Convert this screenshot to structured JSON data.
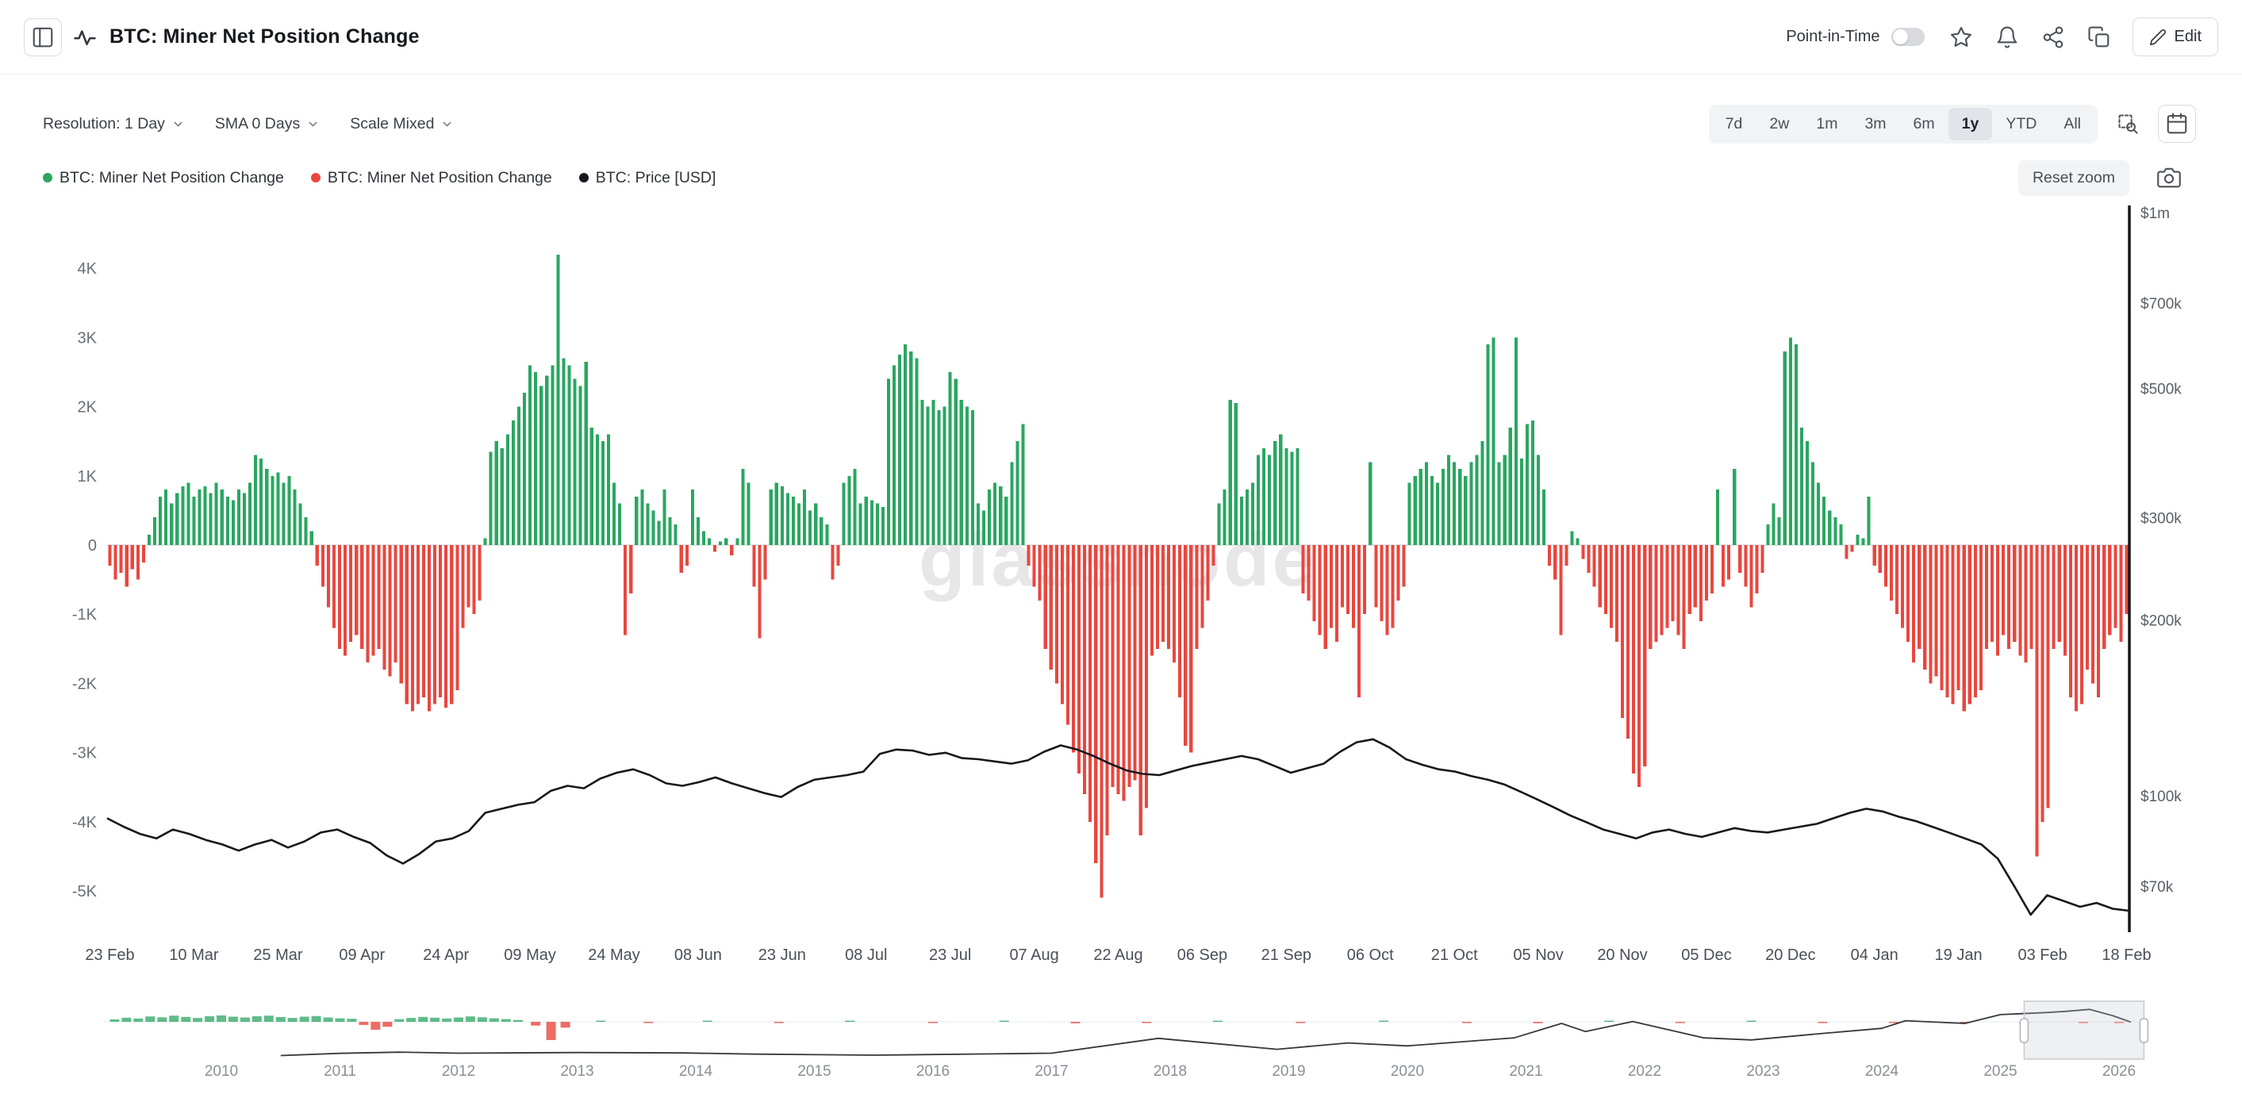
{
  "header": {
    "title": "BTC: Miner Net Position Change",
    "point_in_time_label": "Point-in-Time",
    "edit_label": "Edit"
  },
  "toolbar": {
    "resolution_label": "Resolution: 1 Day",
    "sma_label": "SMA 0 Days",
    "scale_label": "Scale Mixed",
    "ranges": [
      "7d",
      "2w",
      "1m",
      "3m",
      "6m",
      "1y",
      "YTD",
      "All"
    ],
    "active_range": "1y",
    "reset_zoom_label": "Reset zoom"
  },
  "legend": [
    {
      "label": "BTC: Miner Net Position Change",
      "color": "#2aa660"
    },
    {
      "label": "BTC: Miner Net Position Change",
      "color": "#e8473f"
    },
    {
      "label": "BTC: Price [USD]",
      "color": "#15181d"
    }
  ],
  "watermark": "glassnode",
  "chart_data": {
    "type": "bar",
    "title": "BTC: Miner Net Position Change",
    "bar_series_name": "BTC: Miner Net Position Change",
    "price_series_name": "BTC: Price [USD]",
    "ylim": [
      -5600,
      4800
    ],
    "left_axis_ticks": [
      {
        "label": "4K",
        "value": 4000
      },
      {
        "label": "3K",
        "value": 3000
      },
      {
        "label": "2K",
        "value": 2000
      },
      {
        "label": "1K",
        "value": 1000
      },
      {
        "label": "0",
        "value": 0
      },
      {
        "label": "-1K",
        "value": -1000
      },
      {
        "label": "-2K",
        "value": -2000
      },
      {
        "label": "-3K",
        "value": -3000
      },
      {
        "label": "-4K",
        "value": -4000
      },
      {
        "label": "-5K",
        "value": -5000
      }
    ],
    "right_axis_log": true,
    "right_axis_ticks": [
      {
        "label": "$1m",
        "value": 1000000
      },
      {
        "label": "$700k",
        "value": 700000
      },
      {
        "label": "$500k",
        "value": 500000
      },
      {
        "label": "$300k",
        "value": 300000
      },
      {
        "label": "$200k",
        "value": 200000
      },
      {
        "label": "$100k",
        "value": 100000
      },
      {
        "label": "$70k",
        "value": 70000
      }
    ],
    "x_tick_labels": [
      "23 Feb",
      "10 Mar",
      "25 Mar",
      "09 Apr",
      "24 Apr",
      "09 May",
      "24 May",
      "08 Jun",
      "23 Jun",
      "08 Jul",
      "23 Jul",
      "07 Aug",
      "22 Aug",
      "06 Sep",
      "21 Sep",
      "06 Oct",
      "21 Oct",
      "05 Nov",
      "20 Nov",
      "05 Dec",
      "20 Dec",
      "04 Jan",
      "19 Jan",
      "03 Feb",
      "18 Feb"
    ],
    "x_tick_day_offsets": [
      0,
      15,
      30,
      45,
      60,
      75,
      90,
      105,
      120,
      135,
      150,
      165,
      180,
      195,
      210,
      225,
      240,
      255,
      270,
      285,
      300,
      315,
      330,
      345,
      360
    ],
    "colors": {
      "positive": "#2aa660",
      "negative": "#e8473f",
      "price": "#15181d"
    },
    "bar_values": [
      -300,
      -500,
      -400,
      -600,
      -350,
      -500,
      -250,
      150,
      400,
      700,
      800,
      600,
      750,
      850,
      900,
      700,
      800,
      850,
      750,
      900,
      800,
      700,
      650,
      800,
      750,
      900,
      1300,
      1250,
      1100,
      1000,
      1050,
      900,
      1000,
      800,
      600,
      400,
      200,
      -300,
      -600,
      -900,
      -1200,
      -1500,
      -1600,
      -1400,
      -1300,
      -1500,
      -1700,
      -1600,
      -1500,
      -1800,
      -1900,
      -1700,
      -2000,
      -2300,
      -2400,
      -2300,
      -2200,
      -2400,
      -2300,
      -2200,
      -2350,
      -2300,
      -2100,
      -1200,
      -900,
      -1000,
      -800,
      100,
      1350,
      1500,
      1400,
      1600,
      1800,
      2000,
      2200,
      2600,
      2500,
      2300,
      2450,
      2600,
      4200,
      2700,
      2600,
      2400,
      2300,
      2650,
      1700,
      1600,
      1500,
      1600,
      900,
      600,
      -1300,
      -700,
      700,
      800,
      600,
      500,
      350,
      800,
      400,
      300,
      -400,
      -300,
      800,
      400,
      200,
      100,
      -100,
      50,
      100,
      -150,
      100,
      1100,
      900,
      -600,
      -1350,
      -500,
      800,
      900,
      850,
      750,
      700,
      600,
      800,
      500,
      600,
      400,
      300,
      -500,
      -300,
      900,
      1000,
      1100,
      600,
      700,
      650,
      600,
      550,
      2400,
      2600,
      2750,
      2900,
      2800,
      2700,
      2100,
      2000,
      2100,
      1950,
      2000,
      2500,
      2400,
      2100,
      2000,
      1950,
      600,
      500,
      800,
      900,
      850,
      700,
      1200,
      1500,
      1750,
      -300,
      -600,
      -800,
      -1500,
      -1800,
      -2000,
      -2300,
      -2600,
      -3000,
      -3300,
      -3600,
      -4000,
      -4600,
      -5100,
      -4200,
      -3500,
      -3600,
      -3700,
      -3500,
      -3400,
      -4200,
      -3800,
      -1600,
      -1500,
      -1400,
      -1500,
      -1700,
      -2200,
      -2900,
      -3000,
      -1500,
      -1200,
      -800,
      -300,
      600,
      800,
      2100,
      2050,
      700,
      800,
      900,
      1300,
      1400,
      1300,
      1500,
      1600,
      1400,
      1350,
      1400,
      -700,
      -800,
      -1100,
      -1300,
      -1500,
      -1200,
      -1400,
      -900,
      -1000,
      -1200,
      -2200,
      -1000,
      1200,
      -900,
      -1100,
      -1300,
      -1200,
      -800,
      -600,
      900,
      1000,
      1100,
      1200,
      1000,
      900,
      1100,
      1300,
      1200,
      1100,
      1000,
      1200,
      1300,
      1500,
      2900,
      3000,
      1200,
      1300,
      1700,
      3000,
      1250,
      1750,
      1800,
      1300,
      800,
      -300,
      -500,
      -1300,
      -300,
      200,
      100,
      -200,
      -400,
      -600,
      -900,
      -1000,
      -1200,
      -1400,
      -2500,
      -2800,
      -3300,
      -3500,
      -3200,
      -1500,
      -1400,
      -1300,
      -1200,
      -1100,
      -1300,
      -1500,
      -1000,
      -900,
      -1100,
      -800,
      -700,
      800,
      -600,
      -500,
      1100,
      -400,
      -600,
      -900,
      -700,
      -400,
      300,
      600,
      400,
      2800,
      3000,
      2900,
      1700,
      1500,
      1200,
      900,
      700,
      500,
      400,
      300,
      -200,
      -100,
      150,
      100,
      700,
      -300,
      -400,
      -600,
      -800,
      -1000,
      -1200,
      -1400,
      -1700,
      -1500,
      -1800,
      -2000,
      -1900,
      -2100,
      -2200,
      -2300,
      -2100,
      -2400,
      -2300,
      -2200,
      -2100,
      -1500,
      -1400,
      -1600,
      -1300,
      -1500,
      -1400,
      -1600,
      -1700,
      -1500,
      -4500,
      -4000,
      -3800,
      -1500,
      -1400,
      -1600,
      -2200,
      -2400,
      -2300,
      -1800,
      -2000,
      -2200,
      -1500,
      -1300,
      -1200,
      -1400,
      -1000
    ],
    "price_values": [
      91500,
      88500,
      86000,
      84500,
      87500,
      86000,
      84000,
      82500,
      80500,
      82500,
      84000,
      81500,
      83500,
      86500,
      87500,
      85000,
      83000,
      79000,
      76500,
      79500,
      83500,
      84500,
      87000,
      93500,
      95000,
      96500,
      97500,
      102000,
      104000,
      103000,
      107000,
      109500,
      111000,
      108500,
      105000,
      104000,
      105500,
      107500,
      105000,
      103000,
      101000,
      99500,
      103500,
      106500,
      107500,
      108500,
      110000,
      118000,
      120000,
      119500,
      117500,
      118500,
      116000,
      115500,
      114500,
      113500,
      115000,
      119000,
      122000,
      120000,
      117000,
      113500,
      110500,
      109000,
      108500,
      110500,
      112500,
      114000,
      115500,
      117000,
      115500,
      112500,
      109500,
      111500,
      113500,
      119000,
      123500,
      125000,
      121000,
      115500,
      113000,
      111000,
      110000,
      108000,
      106500,
      104500,
      101500,
      98500,
      95500,
      92500,
      90000,
      87500,
      86000,
      84500,
      86500,
      87500,
      86000,
      85000,
      86500,
      88000,
      87000,
      86500,
      87500,
      88500,
      89500,
      91500,
      93500,
      95000,
      94000,
      92000,
      90500,
      88500,
      86500,
      84500,
      82500,
      78000,
      70000,
      62500,
      67500,
      66000,
      64500,
      65500,
      64000,
      63500
    ]
  },
  "navigator": {
    "years": [
      2010,
      2011,
      2012,
      2013,
      2014,
      2015,
      2016,
      2017,
      2018,
      2019,
      2020,
      2021,
      2022,
      2023,
      2024,
      2025,
      2026
    ],
    "selection": [
      2025.2,
      2026.21
    ],
    "bars": [
      {
        "t": 2009.1,
        "v": 1200
      },
      {
        "t": 2009.2,
        "v": 2000
      },
      {
        "t": 2009.3,
        "v": 1600
      },
      {
        "t": 2009.4,
        "v": 2600
      },
      {
        "t": 2009.5,
        "v": 2200
      },
      {
        "t": 2009.6,
        "v": 3000
      },
      {
        "t": 2009.7,
        "v": 2400
      },
      {
        "t": 2009.8,
        "v": 1900
      },
      {
        "t": 2009.9,
        "v": 2700
      },
      {
        "t": 2010.0,
        "v": 3100
      },
      {
        "t": 2010.1,
        "v": 2500
      },
      {
        "t": 2010.2,
        "v": 2100
      },
      {
        "t": 2010.3,
        "v": 2700
      },
      {
        "t": 2010.4,
        "v": 3000
      },
      {
        "t": 2010.5,
        "v": 2300
      },
      {
        "t": 2010.6,
        "v": 1900
      },
      {
        "t": 2010.7,
        "v": 2500
      },
      {
        "t": 2010.8,
        "v": 2800
      },
      {
        "t": 2010.9,
        "v": 2100
      },
      {
        "t": 2011.0,
        "v": 1700
      },
      {
        "t": 2011.1,
        "v": 1500
      },
      {
        "t": 2011.2,
        "v": -1500
      },
      {
        "t": 2011.3,
        "v": -3800
      },
      {
        "t": 2011.4,
        "v": -2400
      },
      {
        "t": 2011.5,
        "v": 1300
      },
      {
        "t": 2011.6,
        "v": 1900
      },
      {
        "t": 2011.7,
        "v": 2400
      },
      {
        "t": 2011.8,
        "v": 2000
      },
      {
        "t": 2011.9,
        "v": 1600
      },
      {
        "t": 2012.0,
        "v": 2100
      },
      {
        "t": 2012.1,
        "v": 2600
      },
      {
        "t": 2012.2,
        "v": 2200
      },
      {
        "t": 2012.3,
        "v": 1700
      },
      {
        "t": 2012.4,
        "v": 1300
      },
      {
        "t": 2012.5,
        "v": 900
      },
      {
        "t": 2012.65,
        "v": -1800
      },
      {
        "t": 2012.78,
        "v": -8800
      },
      {
        "t": 2012.9,
        "v": -2800
      },
      {
        "t": 2013.2,
        "v": 500
      },
      {
        "t": 2013.6,
        "v": -400
      },
      {
        "t": 2014.1,
        "v": 350
      },
      {
        "t": 2014.7,
        "v": -400
      },
      {
        "t": 2015.3,
        "v": 300
      },
      {
        "t": 2016.0,
        "v": -500
      },
      {
        "t": 2016.6,
        "v": 350
      },
      {
        "t": 2017.2,
        "v": -700
      },
      {
        "t": 2017.8,
        "v": -400
      },
      {
        "t": 2018.4,
        "v": 300
      },
      {
        "t": 2019.1,
        "v": -350
      },
      {
        "t": 2019.8,
        "v": 280
      },
      {
        "t": 2020.5,
        "v": -450
      },
      {
        "t": 2021.1,
        "v": -650
      },
      {
        "t": 2021.7,
        "v": 350
      },
      {
        "t": 2022.3,
        "v": -380
      },
      {
        "t": 2022.9,
        "v": 280
      },
      {
        "t": 2023.5,
        "v": -450
      },
      {
        "t": 2024.1,
        "v": -550
      },
      {
        "t": 2024.7,
        "v": -380
      },
      {
        "t": 2025.2,
        "v": -650
      },
      {
        "t": 2025.7,
        "v": -480
      },
      {
        "t": 2026.0,
        "v": -380
      }
    ],
    "price": [
      {
        "t": 2010.5,
        "v": 200
      },
      {
        "t": 2011.0,
        "v": 900
      },
      {
        "t": 2011.5,
        "v": 1500
      },
      {
        "t": 2012.0,
        "v": 1000
      },
      {
        "t": 2013.0,
        "v": 1300
      },
      {
        "t": 2013.9,
        "v": 1100
      },
      {
        "t": 2014.5,
        "v": 600
      },
      {
        "t": 2015.5,
        "v": 300
      },
      {
        "t": 2016.5,
        "v": 700
      },
      {
        "t": 2017.0,
        "v": 1000
      },
      {
        "t": 2017.9,
        "v": 19000
      },
      {
        "t": 2018.9,
        "v": 3500
      },
      {
        "t": 2019.5,
        "v": 11000
      },
      {
        "t": 2020.0,
        "v": 7000
      },
      {
        "t": 2020.9,
        "v": 20000
      },
      {
        "t": 2021.3,
        "v": 60000
      },
      {
        "t": 2021.5,
        "v": 35000
      },
      {
        "t": 2021.9,
        "v": 67000
      },
      {
        "t": 2022.5,
        "v": 20000
      },
      {
        "t": 2022.9,
        "v": 16000
      },
      {
        "t": 2023.5,
        "v": 30000
      },
      {
        "t": 2024.0,
        "v": 44000
      },
      {
        "t": 2024.2,
        "v": 70000
      },
      {
        "t": 2024.7,
        "v": 60000
      },
      {
        "t": 2025.0,
        "v": 95000
      },
      {
        "t": 2025.4,
        "v": 105000
      },
      {
        "t": 2025.55,
        "v": 110000
      },
      {
        "t": 2025.75,
        "v": 120000
      },
      {
        "t": 2025.95,
        "v": 90000
      },
      {
        "t": 2026.1,
        "v": 65000
      }
    ]
  }
}
